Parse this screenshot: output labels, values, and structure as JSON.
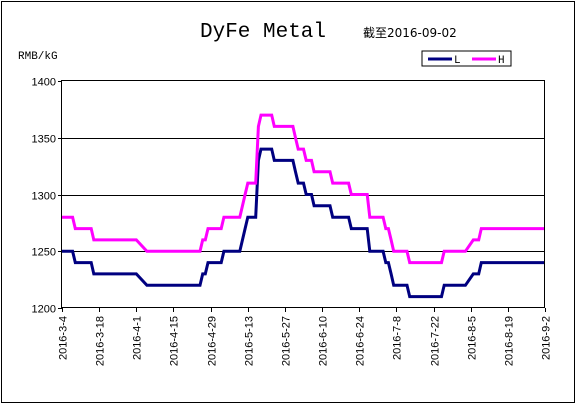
{
  "chart_data": {
    "type": "line",
    "title": "DyFe Metal",
    "subtitle": "截至2016-09-02",
    "ylabel": "RMB/kG",
    "ylim": [
      1200,
      1400
    ],
    "yticks": [
      "1200",
      "1250",
      "1300",
      "1350",
      "1400"
    ],
    "grid": true,
    "legend_position": "top-right",
    "x_start": "2016-3-4",
    "x_end": "2016-9-2",
    "xticks": [
      "2016-3-4",
      "2016-3-18",
      "2016-4-1",
      "2016-4-15",
      "2016-4-29",
      "2016-5-13",
      "2016-5-27",
      "2016-6-10",
      "2016-6-24",
      "2016-7-8",
      "2016-7-22",
      "2016-8-5",
      "2016-8-19",
      "2016-9-2"
    ],
    "series": [
      {
        "name": "L",
        "color": "#000080",
        "points": [
          [
            "2016-3-4",
            1250
          ],
          [
            "2016-3-8",
            1250
          ],
          [
            "2016-3-9",
            1240
          ],
          [
            "2016-3-15",
            1240
          ],
          [
            "2016-3-16",
            1230
          ],
          [
            "2016-4-1",
            1230
          ],
          [
            "2016-4-5",
            1220
          ],
          [
            "2016-4-25",
            1220
          ],
          [
            "2016-4-26",
            1230
          ],
          [
            "2016-4-27",
            1230
          ],
          [
            "2016-4-28",
            1240
          ],
          [
            "2016-5-3",
            1240
          ],
          [
            "2016-5-4",
            1250
          ],
          [
            "2016-5-10",
            1250
          ],
          [
            "2016-5-12",
            1270
          ],
          [
            "2016-5-13",
            1280
          ],
          [
            "2016-5-16",
            1280
          ],
          [
            "2016-5-17",
            1330
          ],
          [
            "2016-5-18",
            1340
          ],
          [
            "2016-5-22",
            1340
          ],
          [
            "2016-5-23",
            1330
          ],
          [
            "2016-5-30",
            1330
          ],
          [
            "2016-5-31",
            1320
          ],
          [
            "2016-6-1",
            1310
          ],
          [
            "2016-6-3",
            1310
          ],
          [
            "2016-6-4",
            1300
          ],
          [
            "2016-6-6",
            1300
          ],
          [
            "2016-6-7",
            1290
          ],
          [
            "2016-6-13",
            1290
          ],
          [
            "2016-6-14",
            1280
          ],
          [
            "2016-6-20",
            1280
          ],
          [
            "2016-6-21",
            1270
          ],
          [
            "2016-6-27",
            1270
          ],
          [
            "2016-6-28",
            1250
          ],
          [
            "2016-7-3",
            1250
          ],
          [
            "2016-7-4",
            1240
          ],
          [
            "2016-7-5",
            1240
          ],
          [
            "2016-7-6",
            1230
          ],
          [
            "2016-7-7",
            1220
          ],
          [
            "2016-7-12",
            1220
          ],
          [
            "2016-7-13",
            1210
          ],
          [
            "2016-7-25",
            1210
          ],
          [
            "2016-7-26",
            1220
          ],
          [
            "2016-8-3",
            1220
          ],
          [
            "2016-8-6",
            1230
          ],
          [
            "2016-8-8",
            1230
          ],
          [
            "2016-8-9",
            1240
          ],
          [
            "2016-9-2",
            1240
          ]
        ]
      },
      {
        "name": "H",
        "color": "#ff00ff",
        "points": [
          [
            "2016-3-4",
            1280
          ],
          [
            "2016-3-8",
            1280
          ],
          [
            "2016-3-9",
            1270
          ],
          [
            "2016-3-15",
            1270
          ],
          [
            "2016-3-16",
            1260
          ],
          [
            "2016-4-1",
            1260
          ],
          [
            "2016-4-5",
            1250
          ],
          [
            "2016-4-25",
            1250
          ],
          [
            "2016-4-26",
            1260
          ],
          [
            "2016-4-27",
            1260
          ],
          [
            "2016-4-28",
            1270
          ],
          [
            "2016-5-3",
            1270
          ],
          [
            "2016-5-4",
            1280
          ],
          [
            "2016-5-10",
            1280
          ],
          [
            "2016-5-12",
            1300
          ],
          [
            "2016-5-13",
            1310
          ],
          [
            "2016-5-16",
            1310
          ],
          [
            "2016-5-17",
            1360
          ],
          [
            "2016-5-18",
            1370
          ],
          [
            "2016-5-22",
            1370
          ],
          [
            "2016-5-23",
            1360
          ],
          [
            "2016-5-30",
            1360
          ],
          [
            "2016-5-31",
            1350
          ],
          [
            "2016-6-1",
            1340
          ],
          [
            "2016-6-3",
            1340
          ],
          [
            "2016-6-4",
            1330
          ],
          [
            "2016-6-6",
            1330
          ],
          [
            "2016-6-7",
            1320
          ],
          [
            "2016-6-13",
            1320
          ],
          [
            "2016-6-14",
            1310
          ],
          [
            "2016-6-20",
            1310
          ],
          [
            "2016-6-21",
            1300
          ],
          [
            "2016-6-27",
            1300
          ],
          [
            "2016-6-28",
            1280
          ],
          [
            "2016-7-3",
            1280
          ],
          [
            "2016-7-4",
            1270
          ],
          [
            "2016-7-5",
            1270
          ],
          [
            "2016-7-6",
            1260
          ],
          [
            "2016-7-7",
            1250
          ],
          [
            "2016-7-12",
            1250
          ],
          [
            "2016-7-13",
            1240
          ],
          [
            "2016-7-25",
            1240
          ],
          [
            "2016-7-26",
            1250
          ],
          [
            "2016-8-3",
            1250
          ],
          [
            "2016-8-6",
            1260
          ],
          [
            "2016-8-8",
            1260
          ],
          [
            "2016-8-9",
            1270
          ],
          [
            "2016-9-2",
            1270
          ]
        ]
      }
    ]
  }
}
